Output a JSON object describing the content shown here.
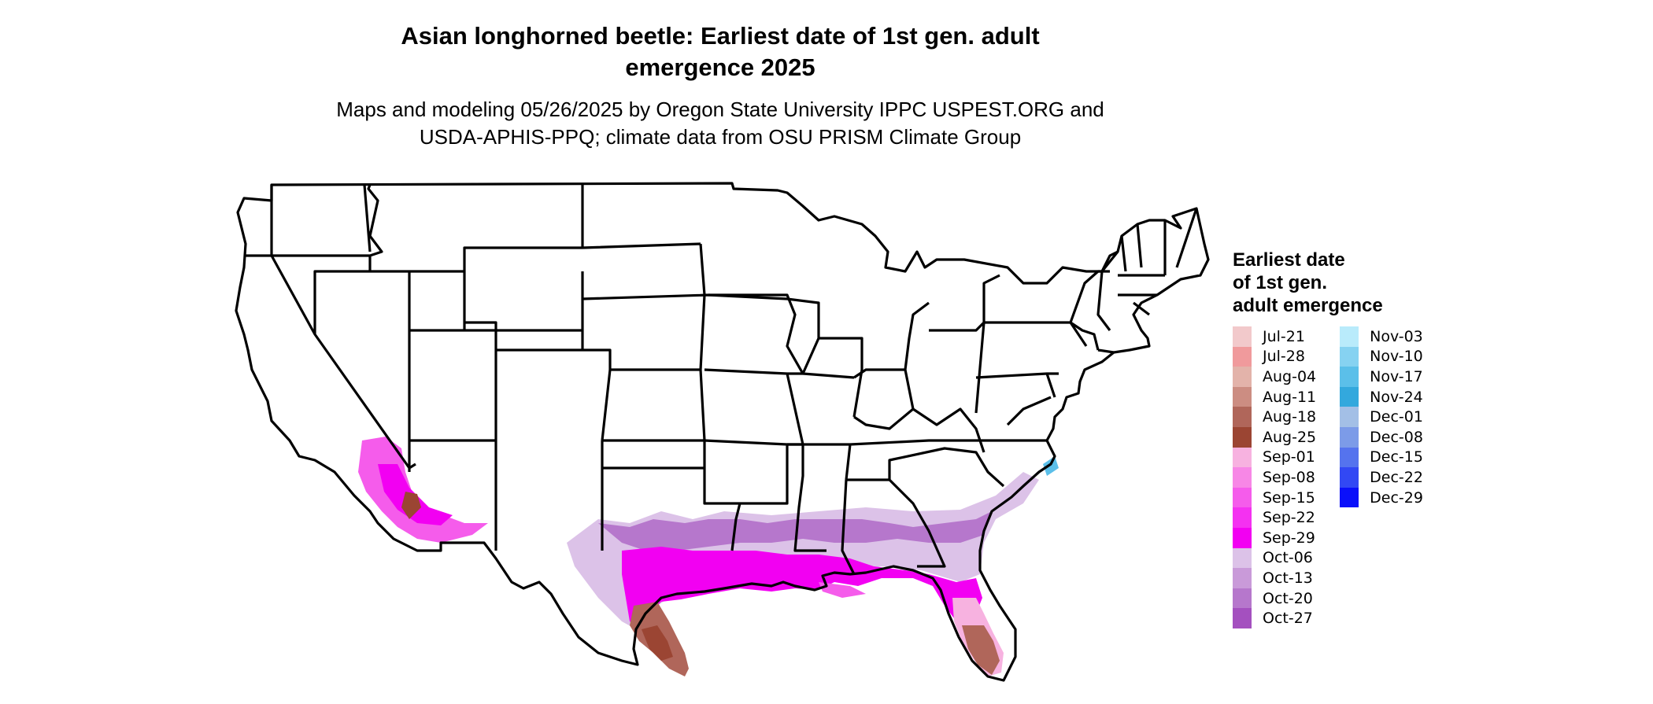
{
  "title_line1": "Asian longhorned beetle: Earliest date of 1st gen. adult",
  "title_line2": "emergence 2025",
  "subtitle_line1": "Maps and modeling 05/26/2025 by Oregon State University IPPC USPEST.ORG and",
  "subtitle_line2": "USDA-APHIS-PPQ; climate data from OSU PRISM Climate Group",
  "legend": {
    "title_lines": [
      "Earliest date",
      "of 1st gen.",
      "adult emergence"
    ],
    "col1": [
      {
        "label": "Jul-21",
        "color": "#f2c9cb"
      },
      {
        "label": "Jul-28",
        "color": "#f09a9c"
      },
      {
        "label": "Aug-04",
        "color": "#e3b3aa"
      },
      {
        "label": "Aug-11",
        "color": "#cc8d82"
      },
      {
        "label": "Aug-18",
        "color": "#b0665a"
      },
      {
        "label": "Aug-25",
        "color": "#9b4533"
      },
      {
        "label": "Sep-01",
        "color": "#f7b2e0"
      },
      {
        "label": "Sep-08",
        "color": "#f787e6"
      },
      {
        "label": "Sep-15",
        "color": "#f55ceb"
      },
      {
        "label": "Sep-22",
        "color": "#f431f1"
      },
      {
        "label": "Sep-29",
        "color": "#f200f2"
      },
      {
        "label": "Oct-06",
        "color": "#dcc2e8"
      },
      {
        "label": "Oct-13",
        "color": "#c99ad9"
      },
      {
        "label": "Oct-20",
        "color": "#b677cc"
      },
      {
        "label": "Oct-27",
        "color": "#a450bf"
      }
    ],
    "col2": [
      {
        "label": "Nov-03",
        "color": "#b9ebfb"
      },
      {
        "label": "Nov-10",
        "color": "#86d2f1"
      },
      {
        "label": "Nov-17",
        "color": "#5bbfe9"
      },
      {
        "label": "Nov-24",
        "color": "#33a8dd"
      },
      {
        "label": "Dec-01",
        "color": "#a3bfe6"
      },
      {
        "label": "Dec-08",
        "color": "#7c9be8"
      },
      {
        "label": "Dec-15",
        "color": "#5573ee"
      },
      {
        "label": "Dec-22",
        "color": "#3248f4"
      },
      {
        "label": "Dec-29",
        "color": "#0a10fa"
      }
    ]
  },
  "map_colors": {
    "brown_dark": "#9b4533",
    "brown": "#b0665a",
    "brown_light": "#cc8d82",
    "magenta": "#f200f2",
    "magenta_mid": "#f55ceb",
    "pink": "#f7b2e0",
    "purple": "#a450bf",
    "purple_mid": "#b677cc",
    "purple_light": "#c99ad9",
    "lilac": "#dcc2e8",
    "cyan": "#5bbfe9"
  }
}
